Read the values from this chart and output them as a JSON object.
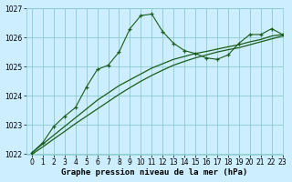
{
  "title": "Graphe pression niveau de la mer (hPa)",
  "bg_color": "#cceeff",
  "grid_color": "#88cccc",
  "line_color": "#1a5c1a",
  "x_values": [
    0,
    1,
    2,
    3,
    4,
    5,
    6,
    7,
    8,
    9,
    10,
    11,
    12,
    13,
    14,
    15,
    16,
    17,
    18,
    19,
    20,
    21,
    22,
    23
  ],
  "y_main": [
    1022.05,
    1022.4,
    1022.95,
    1023.3,
    1023.6,
    1024.3,
    1024.9,
    1025.05,
    1025.5,
    1026.3,
    1026.75,
    1026.8,
    1026.2,
    1025.8,
    1025.55,
    1025.45,
    1025.3,
    1025.25,
    1025.4,
    1025.8,
    1026.1,
    1026.1,
    1026.3,
    1026.1
  ],
  "y_line1": [
    1022.05,
    1022.35,
    1022.65,
    1022.95,
    1023.25,
    1023.55,
    1023.85,
    1024.1,
    1024.35,
    1024.55,
    1024.75,
    1024.95,
    1025.1,
    1025.25,
    1025.35,
    1025.45,
    1025.52,
    1025.6,
    1025.68,
    1025.75,
    1025.85,
    1025.93,
    1026.05,
    1026.1
  ],
  "y_line2": [
    1022.0,
    1022.25,
    1022.52,
    1022.78,
    1023.05,
    1023.3,
    1023.55,
    1023.8,
    1024.05,
    1024.28,
    1024.5,
    1024.7,
    1024.88,
    1025.05,
    1025.18,
    1025.3,
    1025.4,
    1025.5,
    1025.58,
    1025.65,
    1025.75,
    1025.85,
    1025.95,
    1026.05
  ],
  "ylim": [
    1022,
    1027
  ],
  "yticks": [
    1022,
    1023,
    1024,
    1025,
    1026,
    1027
  ],
  "xlim": [
    -0.5,
    23
  ],
  "xticks": [
    0,
    1,
    2,
    3,
    4,
    5,
    6,
    7,
    8,
    9,
    10,
    11,
    12,
    13,
    14,
    15,
    16,
    17,
    18,
    19,
    20,
    21,
    22,
    23
  ],
  "tick_fontsize": 5.5,
  "xlabel_fontsize": 6.5
}
